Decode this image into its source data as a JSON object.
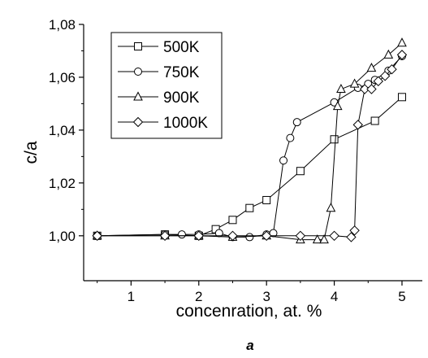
{
  "chart_data": {
    "type": "line",
    "title": "",
    "xlabel": "concenration, at. %",
    "ylabel": "c/a",
    "caption": "a",
    "xlim": [
      0.3,
      5.3
    ],
    "ylim": [
      0.983,
      1.08
    ],
    "xticks": [
      1,
      2,
      3,
      4,
      5
    ],
    "xtick_labels": [
      "1",
      "2",
      "3",
      "4",
      "5"
    ],
    "yticks": [
      1.0,
      1.02,
      1.04,
      1.06,
      1.08
    ],
    "ytick_labels": [
      "1,00",
      "1,02",
      "1,04",
      "1,06",
      "1,08"
    ],
    "grid": false,
    "legend_position": "top-left",
    "series": [
      {
        "name": "500K",
        "marker": "square",
        "x": [
          0.5,
          1.5,
          2.0,
          2.25,
          2.5,
          2.75,
          3.0,
          3.5,
          4.0,
          4.6,
          5.0
        ],
        "y": [
          1.0,
          1.0005,
          1.0,
          1.0025,
          1.006,
          1.0105,
          1.0135,
          1.0245,
          1.0365,
          1.0435,
          1.0525
        ]
      },
      {
        "name": "750K",
        "marker": "circle",
        "x": [
          0.5,
          1.5,
          1.75,
          2.0,
          2.3,
          2.5,
          2.75,
          3.0,
          3.1,
          3.25,
          3.35,
          3.45,
          4.0,
          4.35,
          4.5,
          4.6,
          4.8,
          5.0
        ],
        "y": [
          1.0,
          1.0005,
          1.0005,
          1.0005,
          1.001,
          0.9995,
          0.9995,
          1.0005,
          1.001,
          1.0285,
          1.037,
          1.043,
          1.0505,
          1.056,
          1.0575,
          1.059,
          1.0625,
          1.068
        ]
      },
      {
        "name": "900K",
        "marker": "triangle",
        "x": [
          0.5,
          1.5,
          2.0,
          2.5,
          3.0,
          3.5,
          3.75,
          3.85,
          3.95,
          4.05,
          4.1,
          4.3,
          4.55,
          4.8,
          5.0
        ],
        "y": [
          1.0,
          1.0,
          1.0,
          0.9995,
          1.0,
          0.9985,
          0.9985,
          0.9985,
          1.0105,
          1.049,
          1.0555,
          1.0575,
          1.0635,
          1.0685,
          1.073
        ]
      },
      {
        "name": "1000K",
        "marker": "diamond",
        "x": [
          0.5,
          1.5,
          2.0,
          2.5,
          3.0,
          3.5,
          4.0,
          4.25,
          4.3,
          4.35,
          4.45,
          4.55,
          4.65,
          4.75,
          4.85,
          5.0
        ],
        "y": [
          1.0,
          1.0,
          1.0,
          1.0,
          1.0,
          1.0,
          1.0,
          0.9995,
          1.002,
          1.042,
          1.0555,
          1.0555,
          1.0585,
          1.0605,
          1.063,
          1.0685
        ]
      }
    ]
  }
}
